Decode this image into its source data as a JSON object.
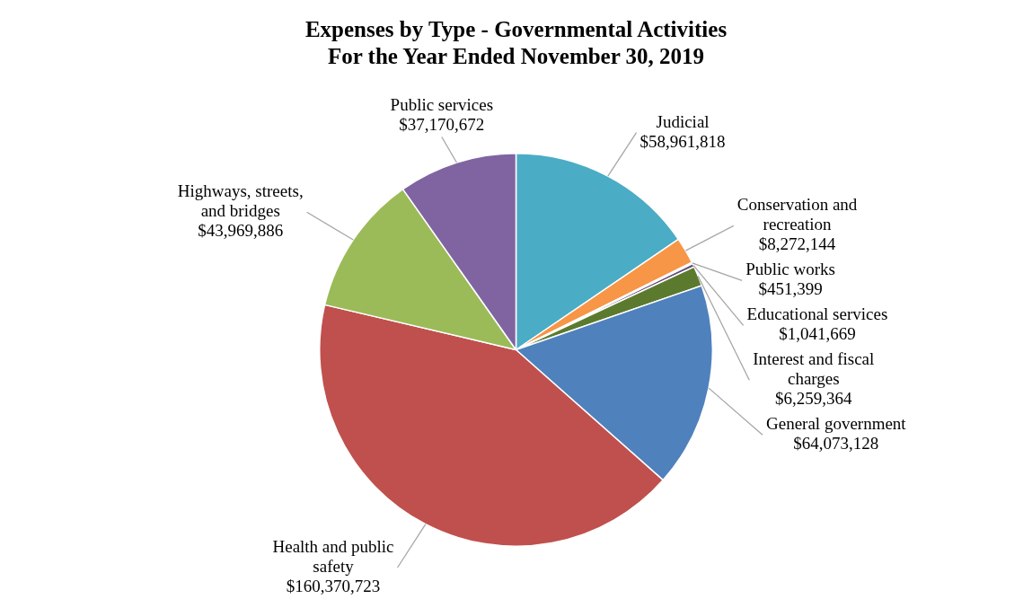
{
  "chart_data": {
    "type": "pie",
    "title": "Expenses by Type - Governmental Activities\nFor the Year Ended November 30, 2019",
    "categories": [
      "Judicial",
      "Conservation and recreation",
      "Public works",
      "Educational services",
      "Interest and fiscal charges",
      "General government",
      "Health and public safety",
      "Highways, streets, and bridges",
      "Public services"
    ],
    "values": [
      58961818,
      8272144,
      451399,
      1041669,
      6259364,
      64073128,
      160370723,
      43969886,
      37170672
    ],
    "value_labels": [
      "$58,961,818",
      "$8,272,144",
      "$451,399",
      "$1,041,669",
      "$6,259,364",
      "$64,073,128",
      "$160,370,723",
      "$43,969,886",
      "$37,170,672"
    ],
    "colors": [
      "#4bacc6",
      "#f79646",
      "#d99694",
      "#5f497a",
      "#5c7a2e",
      "#4f81bd",
      "#c0504d",
      "#9bbb59",
      "#8064a2"
    ],
    "legend": false
  }
}
